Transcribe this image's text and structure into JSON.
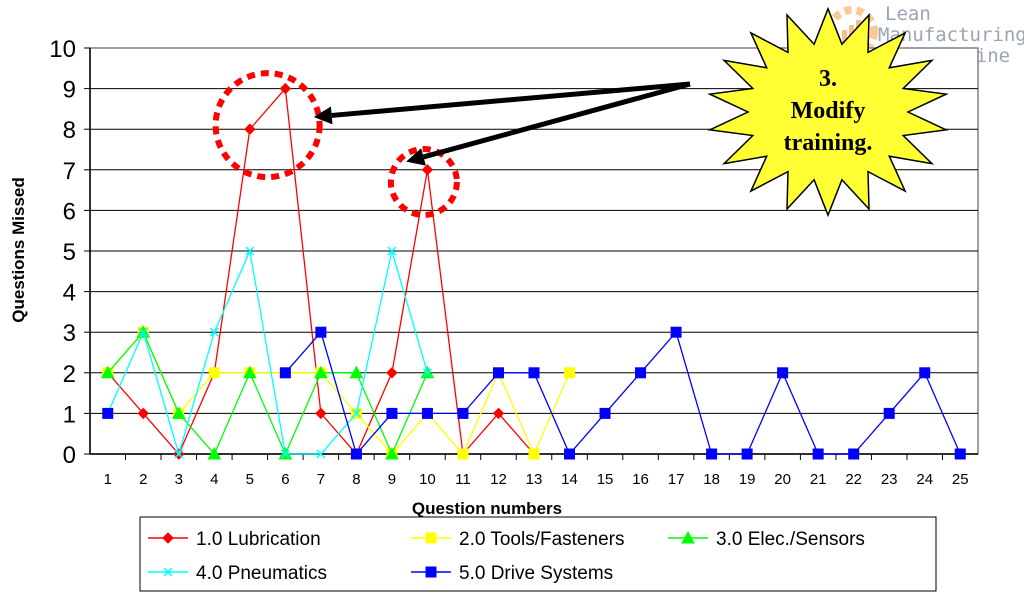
{
  "chart_data": {
    "type": "line",
    "ylabel": "Questions Missed",
    "xlabel": "Question numbers",
    "ylim": [
      0,
      10
    ],
    "yticks": [
      0,
      1,
      2,
      3,
      4,
      5,
      6,
      7,
      8,
      9,
      10
    ],
    "x": [
      1,
      2,
      3,
      4,
      5,
      6,
      7,
      8,
      9,
      10,
      11,
      12,
      13,
      14,
      15,
      16,
      17,
      18,
      19,
      20,
      21,
      22,
      23,
      24,
      25
    ],
    "grid": true,
    "legend_position": "bottom",
    "series": [
      {
        "name": "1.0 Lubrication",
        "color": "#ff0000",
        "marker": "diamond",
        "values": [
          2,
          1,
          0,
          2,
          8,
          9,
          1,
          0,
          2,
          7,
          0,
          1,
          0,
          null,
          null,
          null,
          null,
          null,
          null,
          null,
          null,
          null,
          null,
          null,
          null
        ]
      },
      {
        "name": "2.0 Tools/Fasteners",
        "color": "#ffff00",
        "marker": "square",
        "values": [
          2,
          3,
          1,
          2,
          2,
          2,
          2,
          1,
          0,
          1,
          0,
          2,
          0,
          2,
          null,
          null,
          null,
          null,
          null,
          null,
          null,
          null,
          null,
          null,
          null
        ]
      },
      {
        "name": "3.0 Elec./Sensors",
        "color": "#00ff00",
        "marker": "triangle",
        "values": [
          2,
          3,
          1,
          0,
          2,
          0,
          2,
          2,
          0,
          2,
          null,
          null,
          null,
          null,
          null,
          null,
          null,
          null,
          null,
          null,
          null,
          null,
          null,
          null,
          null
        ]
      },
      {
        "name": "4.0 Pneumatics",
        "color": "#00ffff",
        "marker": "x",
        "values": [
          1,
          3,
          0,
          3,
          5,
          0,
          0,
          1,
          5,
          2,
          null,
          null,
          null,
          null,
          null,
          null,
          null,
          null,
          null,
          null,
          null,
          null,
          null,
          null,
          null
        ]
      },
      {
        "name": "5.0 Drive Systems",
        "color": "#0000ff",
        "marker": "square",
        "values": [
          1,
          null,
          null,
          null,
          null,
          2,
          3,
          0,
          1,
          1,
          1,
          2,
          2,
          0,
          1,
          2,
          3,
          0,
          0,
          2,
          0,
          0,
          1,
          2,
          0
        ]
      }
    ],
    "annotations": [
      {
        "type": "dashed-circle",
        "x": 5.5,
        "y": 8.1,
        "color": "#ff0000"
      },
      {
        "type": "dashed-circle",
        "x": 9.9,
        "y": 6.7,
        "color": "#ff0000"
      }
    ],
    "callout": {
      "lines": [
        "3.",
        "Modify",
        "training."
      ],
      "fill": "#ffff33",
      "arrows_to": [
        [
          6.8,
          8.3
        ],
        [
          9.4,
          7.2
        ]
      ]
    }
  },
  "logo": {
    "lines": [
      "Lean",
      "Manufacturing",
      ".online"
    ]
  }
}
